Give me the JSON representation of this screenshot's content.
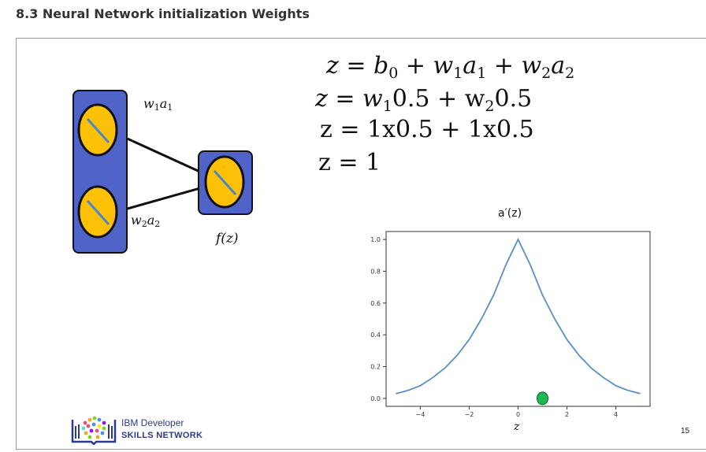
{
  "header": {
    "title": "8.3 Neural Network initialization Weights"
  },
  "equations": {
    "line1": [
      "z = b",
      "0",
      " + w",
      "1",
      "a",
      "1",
      " + w",
      "2",
      "a",
      "2"
    ],
    "line2": [
      "z = w",
      "1",
      "0.5 + w",
      "2",
      "0.5"
    ],
    "line3": "z = 1x0.5 + 1x0.5",
    "line4": "z = 1"
  },
  "diagram": {
    "edge_top": [
      "w",
      "1",
      "a",
      "1"
    ],
    "edge_bottom": [
      "w",
      "2",
      "a",
      "2"
    ],
    "output_label": "f(z)",
    "colors": {
      "box": "#4f63c8",
      "node": "#fcc106",
      "stroke": "#111111",
      "slash": "#4a86c8"
    }
  },
  "chart_data": {
    "type": "line",
    "title": "a′(z)",
    "xlabel": "z",
    "ylabel": "",
    "xlim": [
      -5.4,
      5.4
    ],
    "ylim": [
      -0.05,
      1.05
    ],
    "x_ticks": [
      -4,
      -2,
      0,
      2,
      4
    ],
    "y_ticks": [
      0.0,
      0.2,
      0.4,
      0.6,
      0.8,
      1.0
    ],
    "x_tick_labels": [
      "−4",
      "−2",
      "0",
      "2",
      "4"
    ],
    "y_tick_labels": [
      "0.0",
      "0.2",
      "0.4",
      "0.6",
      "0.8",
      "1.0"
    ],
    "grid": false,
    "series": [
      {
        "color": "#5b8ec4",
        "x": [
          -5,
          -4.5,
          -4,
          -3.5,
          -3,
          -2.5,
          -2,
          -1.5,
          -1,
          -0.5,
          0,
          0.5,
          1,
          1.5,
          2,
          2.5,
          3,
          3.5,
          4,
          4.5,
          5
        ],
        "y": [
          0.03,
          0.05,
          0.08,
          0.13,
          0.19,
          0.27,
          0.37,
          0.5,
          0.65,
          0.84,
          1.0,
          0.84,
          0.65,
          0.5,
          0.37,
          0.27,
          0.19,
          0.13,
          0.08,
          0.05,
          0.03
        ]
      }
    ],
    "marker": {
      "x": 1,
      "y": 0.0,
      "color": "#1db954"
    }
  },
  "footer": {
    "logo_line1": "IBM Developer",
    "logo_line2": "SKILLS NETWORK",
    "page_number": "15"
  }
}
